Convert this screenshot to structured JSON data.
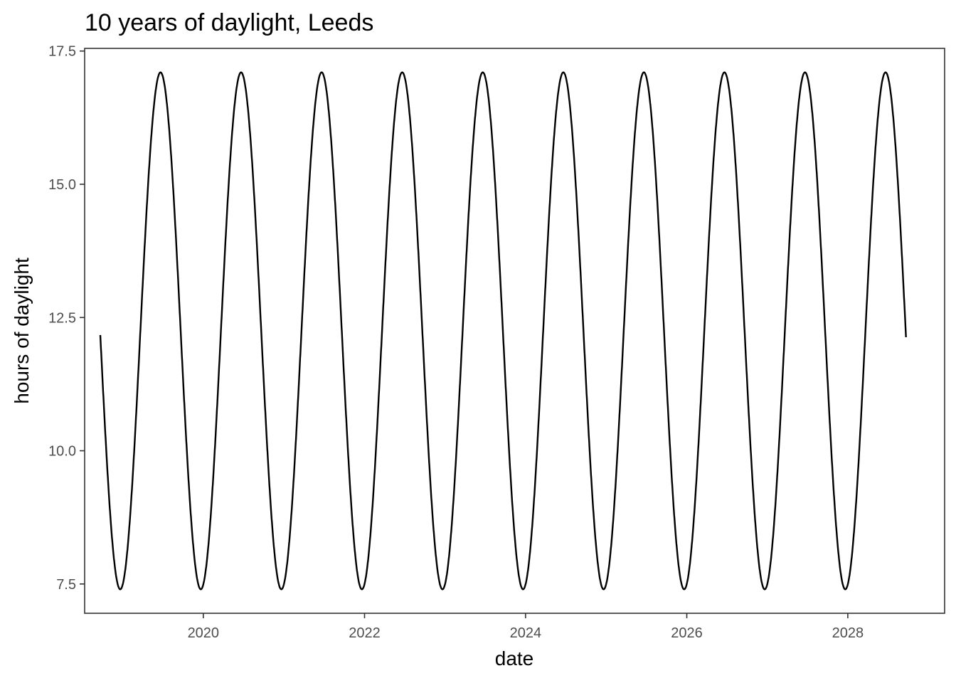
{
  "chart_data": {
    "type": "line",
    "title": "10 years of daylight, Leeds",
    "xlabel": "date",
    "ylabel": "hours of daylight",
    "x_range": [
      "2018-07-12",
      "2029-03-15"
    ],
    "ylim": [
      6.95,
      17.55
    ],
    "x_ticks": [
      {
        "label": "2020",
        "date": "2020-01-01"
      },
      {
        "label": "2022",
        "date": "2022-01-01"
      },
      {
        "label": "2024",
        "date": "2024-01-01"
      },
      {
        "label": "2026",
        "date": "2026-01-01"
      },
      {
        "label": "2028",
        "date": "2028-01-01"
      }
    ],
    "y_ticks": [
      {
        "label": "7.5",
        "value": 7.5
      },
      {
        "label": "10.0",
        "value": 10.0
      },
      {
        "label": "12.5",
        "value": 12.5
      },
      {
        "label": "15.0",
        "value": 15.0
      },
      {
        "label": "17.5",
        "value": 17.5
      }
    ],
    "grid": false,
    "legend": "none",
    "line_color": "#000000",
    "series": [
      {
        "x_start": "2018-09-21",
        "x_end": "2028-09-21",
        "points": [
          {
            "x": "2018-09-21",
            "y": 12.3
          },
          {
            "x": "2018-12-21",
            "y": 7.4
          },
          {
            "x": "2019-06-21",
            "y": 17.1
          },
          {
            "x": "2019-12-21",
            "y": 7.4
          },
          {
            "x": "2020-06-21",
            "y": 17.1
          },
          {
            "x": "2020-12-21",
            "y": 7.4
          },
          {
            "x": "2021-06-21",
            "y": 17.1
          },
          {
            "x": "2021-12-21",
            "y": 7.4
          },
          {
            "x": "2022-06-21",
            "y": 17.1
          },
          {
            "x": "2022-12-21",
            "y": 7.4
          },
          {
            "x": "2023-06-21",
            "y": 17.1
          },
          {
            "x": "2023-12-21",
            "y": 7.4
          },
          {
            "x": "2024-06-21",
            "y": 17.1
          },
          {
            "x": "2024-12-21",
            "y": 7.4
          },
          {
            "x": "2025-06-21",
            "y": 17.1
          },
          {
            "x": "2025-12-21",
            "y": 7.4
          },
          {
            "x": "2026-06-21",
            "y": 17.1
          },
          {
            "x": "2026-12-21",
            "y": 7.4
          },
          {
            "x": "2027-06-21",
            "y": 17.1
          },
          {
            "x": "2027-12-21",
            "y": 7.4
          },
          {
            "x": "2028-06-21",
            "y": 17.1
          },
          {
            "x": "2028-09-21",
            "y": 12.5
          }
        ]
      }
    ]
  }
}
